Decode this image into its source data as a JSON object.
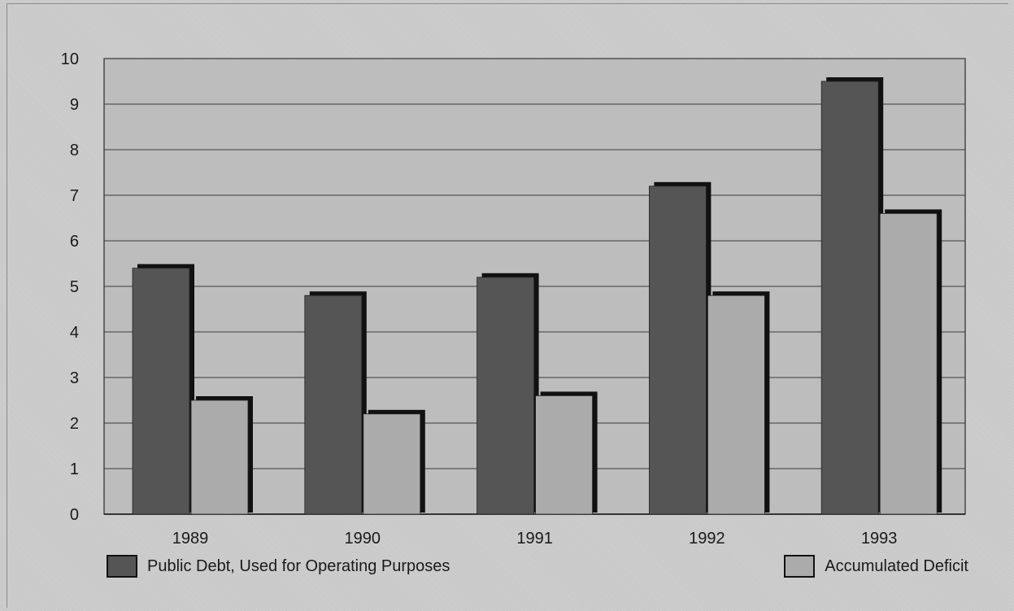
{
  "chart_data": {
    "type": "bar",
    "categories": [
      "1989",
      "1990",
      "1991",
      "1992",
      "1993"
    ],
    "series": [
      {
        "name": "Public Debt, Used for Operating Purposes",
        "values": [
          5.4,
          4.8,
          5.2,
          7.2,
          9.5
        ],
        "color": "#555555"
      },
      {
        "name": "Accumulated Deficit",
        "values": [
          2.5,
          2.2,
          2.6,
          4.8,
          6.6
        ],
        "color": "#ababab"
      }
    ],
    "y_ticks": [
      "0",
      "1",
      "2",
      "3",
      "4",
      "5",
      "6",
      "7",
      "8",
      "9",
      "10"
    ],
    "ylim": [
      0,
      10
    ],
    "grid": true,
    "legend_position": "bottom",
    "plot_background": "#bdbdbd"
  }
}
